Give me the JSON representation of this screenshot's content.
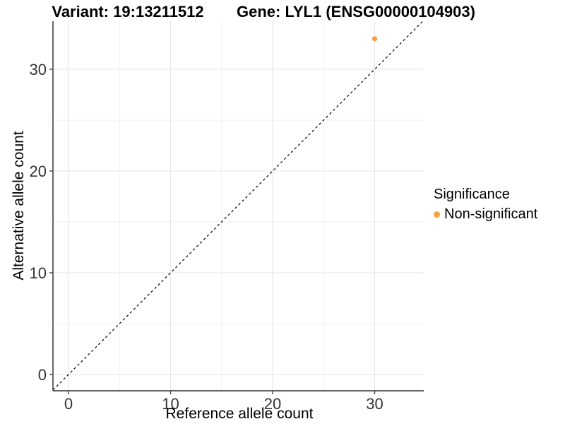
{
  "chart_data": {
    "type": "scatter",
    "titles": {
      "left": "Variant: 19:13211512",
      "right": "Gene: LYL1 (ENSG00000104903)"
    },
    "xlabel": "Reference allele count",
    "ylabel": "Alternative allele count",
    "x_ticks": [
      0,
      10,
      20,
      30
    ],
    "y_ticks": [
      0,
      10,
      20,
      30
    ],
    "x_minor_gridlines": [
      5,
      15,
      25
    ],
    "y_minor_gridlines": [
      5,
      15,
      25
    ],
    "xlim": [
      -1.5,
      34.8
    ],
    "ylim": [
      -1.6,
      34.7
    ],
    "grid": "major and minor, light gray on white",
    "reference_line": {
      "kind": "identity y = x",
      "style": "dashed",
      "color": "#000000"
    },
    "series": [
      {
        "name": "Non-significant",
        "color": "#F9A242",
        "points": [
          {
            "x": 30,
            "y": 33
          }
        ]
      }
    ],
    "legend": {
      "title": "Significance",
      "position": "right",
      "items": [
        {
          "label": "Non-significant",
          "color": "#F9A242"
        }
      ]
    },
    "colors": {
      "axis_line": "#4d4d4d",
      "tick_label": "#333333",
      "major_grid": "#e6e6e6",
      "minor_grid": "#f2f2f2",
      "background": "#ffffff"
    }
  }
}
